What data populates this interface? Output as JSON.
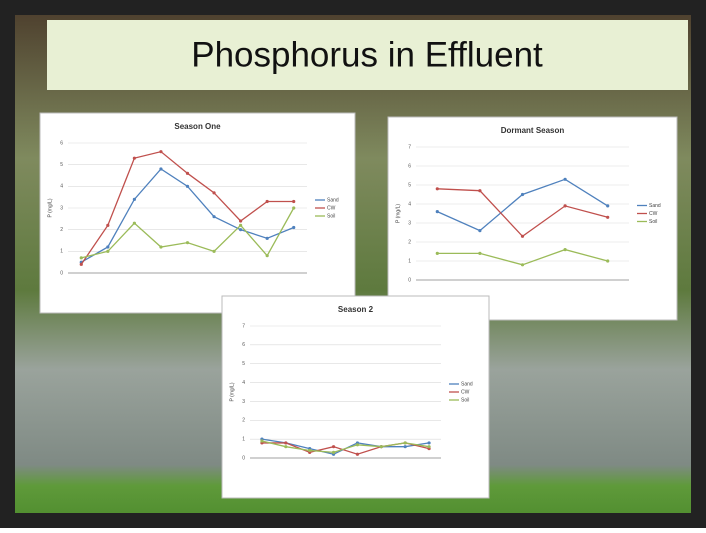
{
  "slide_title": "Phosphorus in Effluent",
  "chart_data": [
    {
      "type": "line",
      "title": "Season One",
      "y_label": "P (mg/L)",
      "categories": [
        null,
        null,
        null,
        null,
        null,
        null,
        null,
        null,
        null
      ],
      "ylim": [
        0,
        6
      ],
      "yticks": [
        0,
        1,
        2,
        3,
        4,
        5,
        6
      ],
      "grid": true,
      "legend": "right",
      "series": [
        {
          "name": "Sand",
          "color": "#4f81bd",
          "values": [
            0.5,
            1.2,
            3.4,
            4.8,
            4.0,
            2.6,
            2.0,
            1.6,
            2.1
          ]
        },
        {
          "name": "CW",
          "color": "#c0504d",
          "values": [
            0.4,
            2.2,
            5.3,
            5.6,
            4.6,
            3.7,
            2.4,
            3.3,
            3.3
          ]
        },
        {
          "name": "Soil",
          "color": "#9bbb59",
          "values": [
            0.7,
            1.0,
            2.3,
            1.2,
            1.4,
            1.0,
            2.2,
            0.8,
            3.0
          ]
        }
      ]
    },
    {
      "type": "line",
      "title": "Dormant Season",
      "y_label": "P (mg/L)",
      "categories": [
        null,
        null,
        null,
        null,
        null
      ],
      "ylim": [
        0,
        7
      ],
      "yticks": [
        0,
        1,
        2,
        3,
        4,
        5,
        6,
        7
      ],
      "grid": true,
      "legend": "right",
      "series": [
        {
          "name": "Sand",
          "color": "#4f81bd",
          "values": [
            3.6,
            2.6,
            4.5,
            5.3,
            3.9
          ]
        },
        {
          "name": "CW",
          "color": "#c0504d",
          "values": [
            4.8,
            4.7,
            2.3,
            3.9,
            3.3
          ]
        },
        {
          "name": "Soil",
          "color": "#9bbb59",
          "values": [
            1.4,
            1.4,
            0.8,
            1.6,
            1.0
          ]
        }
      ]
    },
    {
      "type": "line",
      "title": "Season 2",
      "y_label": "P (mg/L)",
      "categories": [
        null,
        null,
        null,
        null,
        null,
        null,
        null,
        null
      ],
      "ylim": [
        0,
        7
      ],
      "yticks": [
        0,
        1,
        2,
        3,
        4,
        5,
        6,
        7
      ],
      "grid": true,
      "legend": "right",
      "series": [
        {
          "name": "Sand",
          "color": "#4f81bd",
          "values": [
            1.0,
            0.8,
            0.5,
            0.2,
            0.8,
            0.6,
            0.6,
            0.8
          ]
        },
        {
          "name": "CW",
          "color": "#c0504d",
          "values": [
            0.8,
            0.8,
            0.3,
            0.6,
            0.2,
            0.6,
            0.8,
            0.5
          ]
        },
        {
          "name": "Soil",
          "color": "#9bbb59",
          "values": [
            0.9,
            0.6,
            0.4,
            0.3,
            0.7,
            0.6,
            0.8,
            0.6
          ]
        }
      ]
    }
  ]
}
